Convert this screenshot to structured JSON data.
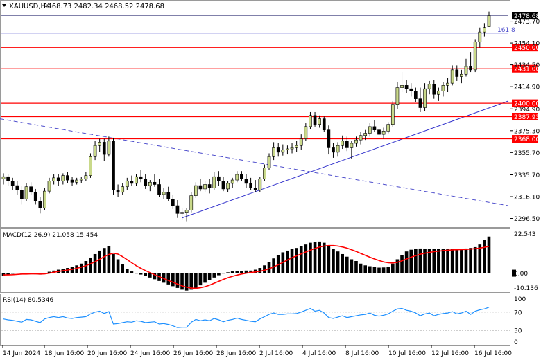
{
  "header": {
    "symbol": "XAUUSD,H4",
    "ohlc": "2468.73 2482.34 2468.52 2478.68"
  },
  "colors": {
    "bull": "#c9d98a",
    "bear": "#000000",
    "level_line": "#ff0000",
    "price_tag_bg": "#ff0000",
    "current_tag_bg": "#000000",
    "trendline": "#3333cc",
    "dashed_line": "#4d4dcc",
    "fib_line": "#4d4dcc",
    "macd_hist": "#000000",
    "macd_signal": "#ff0000",
    "rsi_line": "#1e90ff"
  },
  "price_axis": {
    "ticks": [
      "2473.70",
      "2454.10",
      "2434.50",
      "2414.90",
      "2394.90",
      "2375.30",
      "2355.70",
      "2335.70",
      "2316.10",
      "2296.50"
    ]
  },
  "levels": [
    {
      "label": "2450.00",
      "value": 2450.0
    },
    {
      "label": "2431.00",
      "value": 2431.0
    },
    {
      "label": "2400.00",
      "value": 2400.0
    },
    {
      "label": "2387.93",
      "value": 2387.93
    },
    {
      "label": "2368.00",
      "value": 2368.0
    }
  ],
  "current_price": {
    "label": "2478.68",
    "value": 2478.68
  },
  "fib_label": "161.8",
  "macd": {
    "title": "MACD(12,26,9) 21.058 15.454",
    "axis_ticks": [
      "22.543",
      "0.00",
      "-10.136"
    ]
  },
  "rsi": {
    "title": "RSI(14) 80.5346",
    "axis_ticks": [
      "100",
      "70",
      "30",
      "0"
    ]
  },
  "time_axis": {
    "labels": [
      "14 Jun 2024",
      "18 Jun 16:00",
      "20 Jun 16:00",
      "24 Jun 16:00",
      "26 Jun 16:00",
      "28 Jun 16:00",
      "2 Jul 16:00",
      "4 Jul 16:00",
      "8 Jul 16:00",
      "10 Jul 16:00",
      "12 Jul 16:00",
      "16 Jul 16:00"
    ]
  },
  "chart_data": {
    "type": "candlestick",
    "symbol": "XAUUSD",
    "timeframe": "H4",
    "y_range": [
      2290,
      2484
    ],
    "candles": [
      [
        2332,
        2337,
        2327,
        2334
      ],
      [
        2334,
        2336,
        2326,
        2330
      ],
      [
        2330,
        2333,
        2322,
        2326
      ],
      [
        2326,
        2330,
        2318,
        2322
      ],
      [
        2322,
        2326,
        2309,
        2314
      ],
      [
        2314,
        2328,
        2312,
        2325
      ],
      [
        2325,
        2329,
        2318,
        2320
      ],
      [
        2320,
        2323,
        2309,
        2312
      ],
      [
        2312,
        2316,
        2301,
        2306
      ],
      [
        2306,
        2324,
        2304,
        2321
      ],
      [
        2321,
        2333,
        2319,
        2330
      ],
      [
        2330,
        2336,
        2327,
        2333
      ],
      [
        2333,
        2336,
        2326,
        2330
      ],
      [
        2330,
        2337,
        2327,
        2335
      ],
      [
        2335,
        2338,
        2328,
        2331
      ],
      [
        2331,
        2334,
        2326,
        2329
      ],
      [
        2329,
        2333,
        2327,
        2331
      ],
      [
        2331,
        2334,
        2328,
        2332
      ],
      [
        2332,
        2338,
        2330,
        2335
      ],
      [
        2335,
        2355,
        2333,
        2352
      ],
      [
        2352,
        2366,
        2349,
        2362
      ],
      [
        2362,
        2368,
        2356,
        2365
      ],
      [
        2365,
        2368,
        2348,
        2354
      ],
      [
        2354,
        2370,
        2352,
        2366
      ],
      [
        2366,
        2369,
        2318,
        2322
      ],
      [
        2322,
        2327,
        2316,
        2320
      ],
      [
        2320,
        2328,
        2318,
        2325
      ],
      [
        2325,
        2333,
        2322,
        2330
      ],
      [
        2330,
        2335,
        2326,
        2328
      ],
      [
        2328,
        2336,
        2326,
        2334
      ],
      [
        2334,
        2340,
        2329,
        2332
      ],
      [
        2332,
        2336,
        2323,
        2326
      ],
      [
        2326,
        2331,
        2321,
        2329
      ],
      [
        2329,
        2336,
        2325,
        2327
      ],
      [
        2327,
        2332,
        2316,
        2318
      ],
      [
        2318,
        2324,
        2314,
        2320
      ],
      [
        2320,
        2325,
        2312,
        2314
      ],
      [
        2314,
        2318,
        2305,
        2308
      ],
      [
        2308,
        2313,
        2297,
        2301
      ],
      [
        2301,
        2306,
        2295,
        2302
      ],
      [
        2302,
        2306,
        2294,
        2304
      ],
      [
        2304,
        2320,
        2302,
        2317
      ],
      [
        2317,
        2329,
        2315,
        2326
      ],
      [
        2326,
        2332,
        2321,
        2323
      ],
      [
        2323,
        2330,
        2320,
        2327
      ],
      [
        2327,
        2332,
        2319,
        2324
      ],
      [
        2324,
        2338,
        2322,
        2334
      ],
      [
        2334,
        2339,
        2326,
        2330
      ],
      [
        2330,
        2334,
        2321,
        2323
      ],
      [
        2323,
        2330,
        2320,
        2328
      ],
      [
        2328,
        2333,
        2324,
        2331
      ],
      [
        2331,
        2339,
        2329,
        2336
      ],
      [
        2336,
        2339,
        2330,
        2332
      ],
      [
        2332,
        2336,
        2324,
        2328
      ],
      [
        2328,
        2333,
        2322,
        2324
      ],
      [
        2324,
        2331,
        2320,
        2322
      ],
      [
        2322,
        2334,
        2320,
        2332
      ],
      [
        2332,
        2345,
        2330,
        2342
      ],
      [
        2342,
        2355,
        2340,
        2352
      ],
      [
        2352,
        2365,
        2349,
        2360
      ],
      [
        2360,
        2364,
        2352,
        2356
      ],
      [
        2356,
        2363,
        2353,
        2358
      ],
      [
        2358,
        2362,
        2354,
        2359
      ],
      [
        2359,
        2364,
        2355,
        2360
      ],
      [
        2360,
        2366,
        2356,
        2362
      ],
      [
        2362,
        2372,
        2358,
        2368
      ],
      [
        2368,
        2382,
        2366,
        2379
      ],
      [
        2379,
        2392,
        2377,
        2389
      ],
      [
        2389,
        2392,
        2379,
        2381
      ],
      [
        2381,
        2389,
        2378,
        2386
      ],
      [
        2386,
        2388,
        2374,
        2376
      ],
      [
        2376,
        2380,
        2354,
        2360
      ],
      [
        2360,
        2364,
        2351,
        2356
      ],
      [
        2356,
        2365,
        2352,
        2362
      ],
      [
        2362,
        2371,
        2359,
        2366
      ],
      [
        2366,
        2370,
        2357,
        2360
      ],
      [
        2360,
        2366,
        2350,
        2364
      ],
      [
        2364,
        2370,
        2361,
        2367
      ],
      [
        2367,
        2374,
        2363,
        2371
      ],
      [
        2371,
        2376,
        2367,
        2373
      ],
      [
        2373,
        2382,
        2370,
        2379
      ],
      [
        2379,
        2385,
        2374,
        2376
      ],
      [
        2376,
        2381,
        2369,
        2372
      ],
      [
        2372,
        2378,
        2368,
        2375
      ],
      [
        2375,
        2383,
        2373,
        2381
      ],
      [
        2381,
        2402,
        2379,
        2399
      ],
      [
        2399,
        2419,
        2395,
        2414
      ],
      [
        2414,
        2428,
        2410,
        2416
      ],
      [
        2416,
        2421,
        2409,
        2413
      ],
      [
        2413,
        2418,
        2406,
        2411
      ],
      [
        2411,
        2414,
        2401,
        2404
      ],
      [
        2404,
        2414,
        2392,
        2396
      ],
      [
        2396,
        2418,
        2393,
        2413
      ],
      [
        2413,
        2420,
        2408,
        2417
      ],
      [
        2417,
        2421,
        2404,
        2408
      ],
      [
        2408,
        2414,
        2402,
        2411
      ],
      [
        2411,
        2419,
        2406,
        2416
      ],
      [
        2416,
        2423,
        2410,
        2418
      ],
      [
        2418,
        2434,
        2416,
        2430
      ],
      [
        2430,
        2434,
        2420,
        2424
      ],
      [
        2424,
        2430,
        2418,
        2426
      ],
      [
        2426,
        2440,
        2424,
        2433
      ],
      [
        2433,
        2446,
        2428,
        2430
      ],
      [
        2430,
        2457,
        2428,
        2455
      ],
      [
        2455,
        2468,
        2450,
        2464
      ],
      [
        2464,
        2472,
        2460,
        2468
      ],
      [
        2468.73,
        2482.34,
        2468.52,
        2478.68
      ]
    ],
    "macd_histogram": [
      -1.5,
      -0.8,
      -0.3,
      0.2,
      0.0,
      -0.5,
      -0.2,
      -0.6,
      -0.8,
      -0.3,
      0.8,
      1.5,
      2.0,
      2.5,
      3.0,
      3.5,
      4.5,
      5.5,
      7.0,
      9.0,
      11.0,
      13.0,
      14.5,
      15.5,
      11.0,
      8.0,
      5.0,
      2.5,
      1.0,
      0.0,
      -0.8,
      -1.5,
      -2.5,
      -3.5,
      -4.5,
      -5.5,
      -6.5,
      -7.5,
      -8.5,
      -9.5,
      -10.0,
      -9.5,
      -8.5,
      -7.0,
      -5.5,
      -4.0,
      -2.5,
      -1.2,
      -0.2,
      0.5,
      1.0,
      1.2,
      1.3,
      1.5,
      1.5,
      2.0,
      3.0,
      4.5,
      6.5,
      8.5,
      10.5,
      12.0,
      13.0,
      14.0,
      14.5,
      15.5,
      16.5,
      17.5,
      18.0,
      18.2,
      17.5,
      16.0,
      14.0,
      12.5,
      11.0,
      9.5,
      8.0,
      7.0,
      5.5,
      4.5,
      4.0,
      3.5,
      3.2,
      3.3,
      3.8,
      5.5,
      8.0,
      10.5,
      12.5,
      13.5,
      14.0,
      14.2,
      14.0,
      13.8,
      14.0,
      14.0,
      13.8,
      13.9,
      14.0,
      14.0,
      14.0,
      14.2,
      14.5,
      15.0,
      16.5,
      19.0,
      21.058
    ],
    "macd_signal": [
      -1.0,
      -1.0,
      -0.9,
      -0.7,
      -0.5,
      -0.5,
      -0.4,
      -0.4,
      -0.5,
      -0.4,
      0.0,
      0.5,
      1.0,
      1.4,
      1.8,
      2.2,
      2.8,
      3.5,
      4.3,
      5.4,
      6.6,
      8.0,
      9.5,
      10.8,
      11.5,
      11.0,
      9.5,
      7.8,
      6.0,
      4.3,
      2.8,
      1.5,
      0.3,
      -0.9,
      -2.0,
      -3.1,
      -4.2,
      -5.2,
      -6.3,
      -7.3,
      -8.1,
      -8.6,
      -8.7,
      -8.4,
      -7.8,
      -6.9,
      -5.8,
      -4.7,
      -3.6,
      -2.6,
      -1.8,
      -1.1,
      -0.5,
      0.0,
      0.4,
      0.7,
      1.1,
      1.7,
      2.5,
      3.6,
      4.9,
      6.2,
      7.6,
      8.9,
      10.0,
      11.1,
      12.2,
      13.2,
      14.2,
      15.0,
      15.6,
      15.9,
      15.9,
      15.6,
      15.1,
      14.4,
      13.5,
      12.5,
      11.4,
      10.3,
      9.2,
      8.2,
      7.3,
      6.5,
      6.0,
      5.9,
      6.3,
      7.1,
      8.2,
      9.2,
      10.1,
      10.9,
      11.5,
      12.0,
      12.4,
      12.7,
      13.0,
      13.2,
      13.4,
      13.5,
      13.6,
      13.7,
      13.9,
      14.1,
      14.4,
      14.9,
      15.454
    ],
    "macd_range": [
      -10.136,
      22.543
    ],
    "rsi": [
      55,
      53,
      52,
      50,
      48,
      54,
      53,
      50,
      47,
      55,
      58,
      60,
      58,
      60,
      57,
      56,
      58,
      59,
      60,
      66,
      70,
      72,
      67,
      71,
      44,
      45,
      47,
      49,
      48,
      51,
      50,
      47,
      48,
      49,
      44,
      45,
      43,
      40,
      36,
      37,
      37,
      48,
      54,
      51,
      53,
      51,
      56,
      53,
      49,
      52,
      54,
      57,
      54,
      52,
      50,
      49,
      55,
      60,
      65,
      68,
      65,
      65,
      66,
      66,
      67,
      70,
      74,
      78,
      72,
      74,
      68,
      58,
      56,
      59,
      62,
      58,
      60,
      62,
      64,
      65,
      68,
      63,
      61,
      63,
      66,
      72,
      77,
      78,
      74,
      72,
      68,
      62,
      66,
      68,
      62,
      65,
      67,
      68,
      71,
      66,
      68,
      72,
      65,
      72,
      75,
      77,
      80.5346
    ],
    "rsi_levels": [
      70,
      30
    ],
    "x_labels": [
      "14 Jun 2024",
      "18 Jun 16:00",
      "20 Jun 16:00",
      "24 Jun 16:00",
      "26 Jun 16:00",
      "28 Jun 16:00",
      "2 Jul 16:00",
      "4 Jul 16:00",
      "8 Jul 16:00",
      "10 Jul 16:00",
      "12 Jul 16:00",
      "16 Jul 16:00"
    ]
  }
}
